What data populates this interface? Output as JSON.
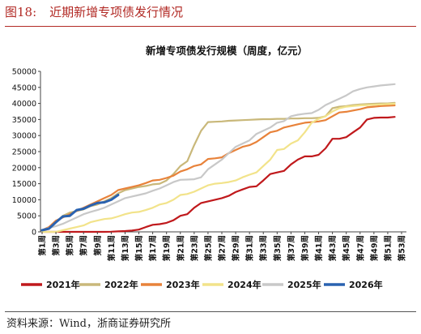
{
  "figure": {
    "label": "图18:",
    "heading": "近期新增专项债发行情况",
    "source": "资料来源：Wind，浙商证券研究所"
  },
  "chart_data": {
    "type": "line",
    "title": "新增专项债发行规模（周度，亿元）",
    "xlabel": "",
    "ylabel": "",
    "ylim": [
      0,
      50000
    ],
    "yticks": [
      "0",
      "5000",
      "10000",
      "15000",
      "20000",
      "25000",
      "30000",
      "35000",
      "40000",
      "45000",
      "50000"
    ],
    "x_tick_labels": [
      "第1周",
      "第3周",
      "第5周",
      "第7周",
      "第9周",
      "第11周",
      "第13周",
      "第15周",
      "第17周",
      "第19周",
      "第21周",
      "第23周",
      "第25周",
      "第27周",
      "第29周",
      "第31周",
      "第33周",
      "第35周",
      "第37周",
      "第39周",
      "第41周",
      "第43周",
      "第45周",
      "第47周",
      "第49周",
      "第51周",
      "第53周"
    ],
    "grid": false,
    "legend_position": "bottom",
    "series": [
      {
        "name": "2021年",
        "color": "#c0191c",
        "weeks": [
          1,
          2,
          3,
          4,
          5,
          6,
          7,
          8,
          9,
          10,
          11,
          12,
          13,
          14,
          15,
          16,
          17,
          18,
          19,
          20,
          21,
          22,
          23,
          24,
          25,
          26,
          27,
          28,
          29,
          30,
          31,
          32,
          33,
          34,
          35,
          36,
          37,
          38,
          39,
          40,
          41,
          42,
          43,
          44,
          45,
          46,
          47,
          48,
          49,
          50,
          51,
          52
        ],
        "values": [
          0,
          0,
          0,
          0,
          0,
          0,
          0,
          0,
          0,
          0,
          50,
          150,
          250,
          400,
          700,
          1500,
          2200,
          2400,
          2800,
          3600,
          5000,
          5500,
          7500,
          9000,
          9500,
          10000,
          10500,
          11200,
          12400,
          13200,
          14000,
          14200,
          16000,
          18000,
          18500,
          19000,
          21000,
          22500,
          23500,
          23500,
          24000,
          26000,
          29000,
          29000,
          29500,
          31000,
          32500,
          35000,
          35500,
          35600,
          35600,
          35800
        ]
      },
      {
        "name": "2022年",
        "color": "#c9b87a",
        "weeks": [
          1,
          2,
          3,
          4,
          5,
          6,
          7,
          8,
          9,
          10,
          11,
          12,
          13,
          14,
          15,
          16,
          17,
          18,
          19,
          20,
          21,
          22,
          23,
          24,
          25,
          26,
          27,
          28,
          29,
          30,
          31,
          32,
          33,
          34,
          35,
          36,
          37,
          38,
          39,
          40,
          41,
          42,
          43,
          44,
          45,
          46,
          47,
          48,
          49,
          50,
          51,
          52
        ],
        "values": [
          500,
          1500,
          3000,
          5000,
          6000,
          6500,
          7000,
          8000,
          8500,
          9500,
          10500,
          12000,
          13000,
          13500,
          14000,
          14300,
          14800,
          15000,
          16000,
          18000,
          20500,
          22000,
          27000,
          31500,
          34200,
          34300,
          34400,
          34600,
          34700,
          34800,
          34900,
          35000,
          35100,
          35100,
          35200,
          35200,
          35300,
          35300,
          35400,
          35400,
          35500,
          36000,
          38500,
          39000,
          39200,
          39500,
          39700,
          39800,
          39900,
          40000,
          40000,
          40200
        ]
      },
      {
        "name": "2023年",
        "color": "#e8823a",
        "weeks": [
          1,
          2,
          3,
          4,
          5,
          6,
          7,
          8,
          9,
          10,
          11,
          12,
          13,
          14,
          15,
          16,
          17,
          18,
          19,
          20,
          21,
          22,
          23,
          24,
          25,
          26,
          27,
          28,
          29,
          30,
          31,
          32,
          33,
          34,
          35,
          36,
          37,
          38,
          39,
          40,
          41,
          42,
          43,
          44,
          45,
          46,
          47,
          48,
          49,
          50,
          51,
          52
        ],
        "values": [
          500,
          1500,
          3500,
          4500,
          5500,
          6500,
          7500,
          8500,
          9500,
          10500,
          11500,
          13000,
          13500,
          14000,
          14500,
          15200,
          16000,
          16200,
          16800,
          17500,
          18800,
          19500,
          20500,
          21000,
          22700,
          22900,
          23200,
          24500,
          25500,
          26500,
          27000,
          28000,
          29500,
          31000,
          31500,
          32500,
          33000,
          33500,
          34000,
          34200,
          34400,
          34800,
          36000,
          37200,
          37400,
          37800,
          38200,
          38800,
          39000,
          39200,
          39300,
          39400
        ]
      },
      {
        "name": "2024年",
        "color": "#f2e38a",
        "weeks": [
          1,
          2,
          3,
          4,
          5,
          6,
          7,
          8,
          9,
          10,
          11,
          12,
          13,
          14,
          15,
          16,
          17,
          18,
          19,
          20,
          21,
          22,
          23,
          24,
          25,
          26,
          27,
          28,
          29,
          30,
          31,
          32,
          33,
          34,
          35,
          36,
          37,
          38,
          39,
          40,
          41,
          42,
          43,
          44,
          45,
          46,
          47,
          48,
          49,
          50,
          51,
          52
        ],
        "values": [
          0,
          0,
          0,
          500,
          1000,
          1500,
          2000,
          3000,
          3500,
          4000,
          4200,
          4800,
          5500,
          6000,
          6200,
          6800,
          7500,
          8500,
          9000,
          10000,
          11500,
          11800,
          12500,
          13500,
          14500,
          15000,
          15200,
          15500,
          16000,
          17000,
          17800,
          18500,
          20500,
          22500,
          25500,
          25800,
          27500,
          28500,
          31000,
          34000,
          35200,
          36000,
          37500,
          38500,
          39000,
          39200,
          39400,
          39500,
          39600,
          39700,
          39800,
          39900
        ]
      },
      {
        "name": "2025年",
        "color": "#c8c8c8",
        "weeks": [
          1,
          2,
          3,
          4,
          5,
          6,
          7,
          8,
          9,
          10,
          11,
          12,
          13,
          14,
          15,
          16,
          17,
          18,
          19,
          20,
          21,
          22,
          23,
          24,
          25,
          26,
          27,
          28,
          29,
          30,
          31,
          32,
          33,
          34,
          35,
          36,
          37,
          38,
          39,
          40,
          41,
          42,
          43,
          44,
          45,
          46,
          47,
          48,
          49,
          50,
          51,
          52
        ],
        "values": [
          500,
          1200,
          1800,
          2500,
          3500,
          4500,
          5500,
          6200,
          6800,
          7500,
          8500,
          9500,
          10500,
          11000,
          11500,
          12000,
          12800,
          13500,
          14500,
          15500,
          16200,
          16300,
          16400,
          17000,
          19500,
          21000,
          22500,
          24500,
          26500,
          27500,
          28500,
          30500,
          31500,
          32500,
          34000,
          34500,
          36000,
          36500,
          36800,
          37000,
          38000,
          39500,
          40500,
          41500,
          42500,
          43800,
          44500,
          45000,
          45300,
          45600,
          45800,
          46000
        ]
      },
      {
        "name": "2026年",
        "color": "#2a62b0",
        "weeks": [
          1,
          2,
          3,
          4,
          5,
          6,
          7,
          8,
          9,
          10,
          11,
          12
        ],
        "values": [
          500,
          1000,
          3000,
          4800,
          5000,
          6800,
          7200,
          8200,
          9000,
          9200,
          10000,
          11500
        ]
      }
    ]
  }
}
